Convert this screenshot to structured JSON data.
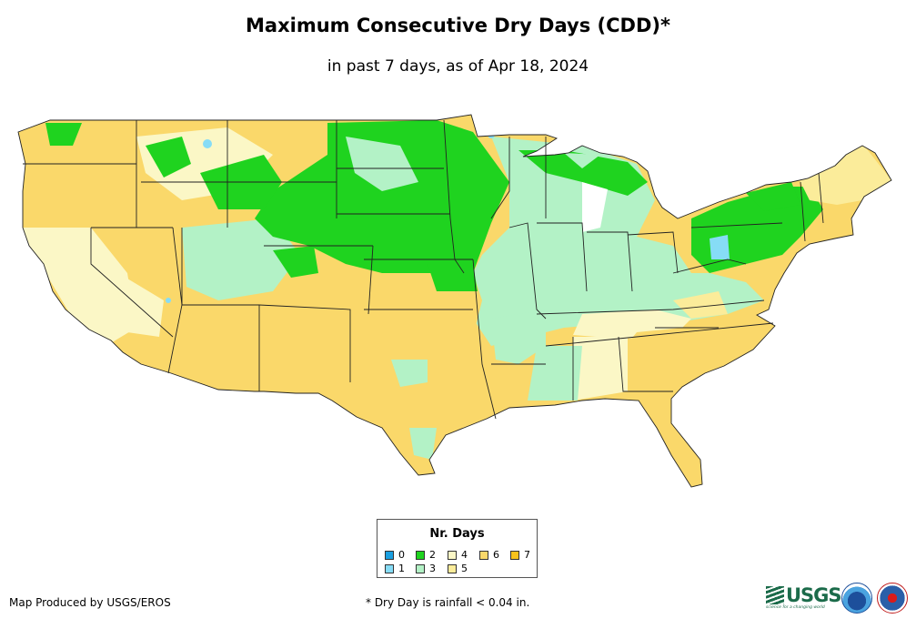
{
  "title": "Maximum Consecutive Dry Days (CDD)*",
  "subtitle": "in past 7 days, as of Apr 18, 2024",
  "legend": {
    "title": "Nr. Days",
    "items": [
      {
        "label": "0",
        "color": "#1a9fe0"
      },
      {
        "label": "1",
        "color": "#86dcf6"
      },
      {
        "label": "2",
        "color": "#1fd31f"
      },
      {
        "label": "3",
        "color": "#b3f2c6"
      },
      {
        "label": "4",
        "color": "#fbf7c6"
      },
      {
        "label": "5",
        "color": "#fbec9a"
      },
      {
        "label": "6",
        "color": "#fad86a"
      },
      {
        "label": "7",
        "color": "#f7c21c"
      }
    ]
  },
  "footer": {
    "credit": "Map Produced by USGS/EROS",
    "note": "* Dry Day is rainfall < 0.04 in."
  },
  "logos": {
    "usgs_text": "USGS",
    "usgs_tagline": "science for a changing world",
    "noaa": "NOAA",
    "nws": "National Weather Service"
  },
  "colors": {
    "state_border": "#222222",
    "ocean": "#ffffff",
    "lake": "#ffffff"
  }
}
